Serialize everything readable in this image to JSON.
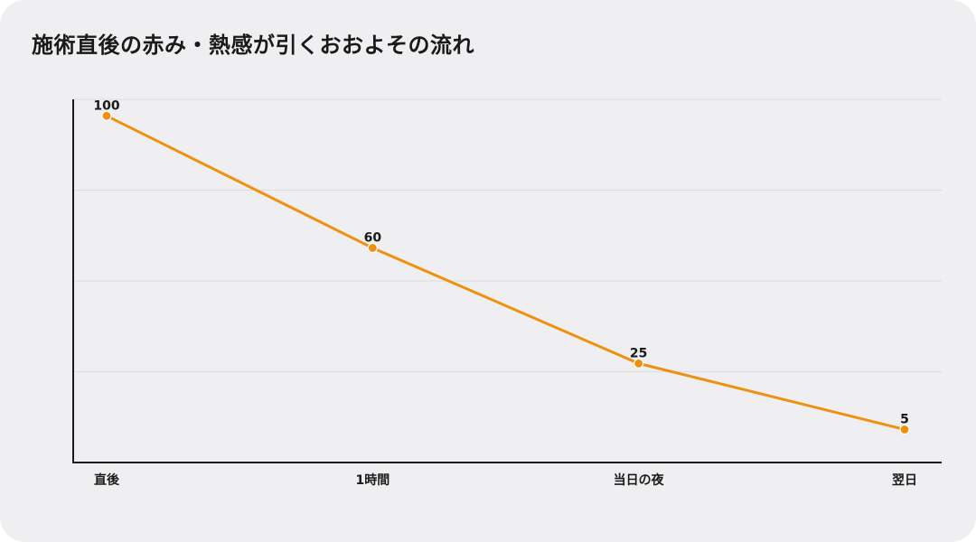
{
  "chart_data": {
    "type": "line",
    "title": "施術直後の赤み・熱感が引くおおよその流れ",
    "xlabel": "",
    "ylabel": "",
    "categories": [
      "直後",
      "1時間",
      "当日の夜",
      "翌日"
    ],
    "series": [
      {
        "values": [
          100,
          60,
          25,
          5
        ]
      }
    ],
    "ylim": [
      -5,
      105
    ],
    "grid": true,
    "legend": "none",
    "line_color": "#f0900f",
    "marker_color": "#f0900f",
    "grid_color": "#dcdcde",
    "axis_color": "#1a1a1a"
  }
}
